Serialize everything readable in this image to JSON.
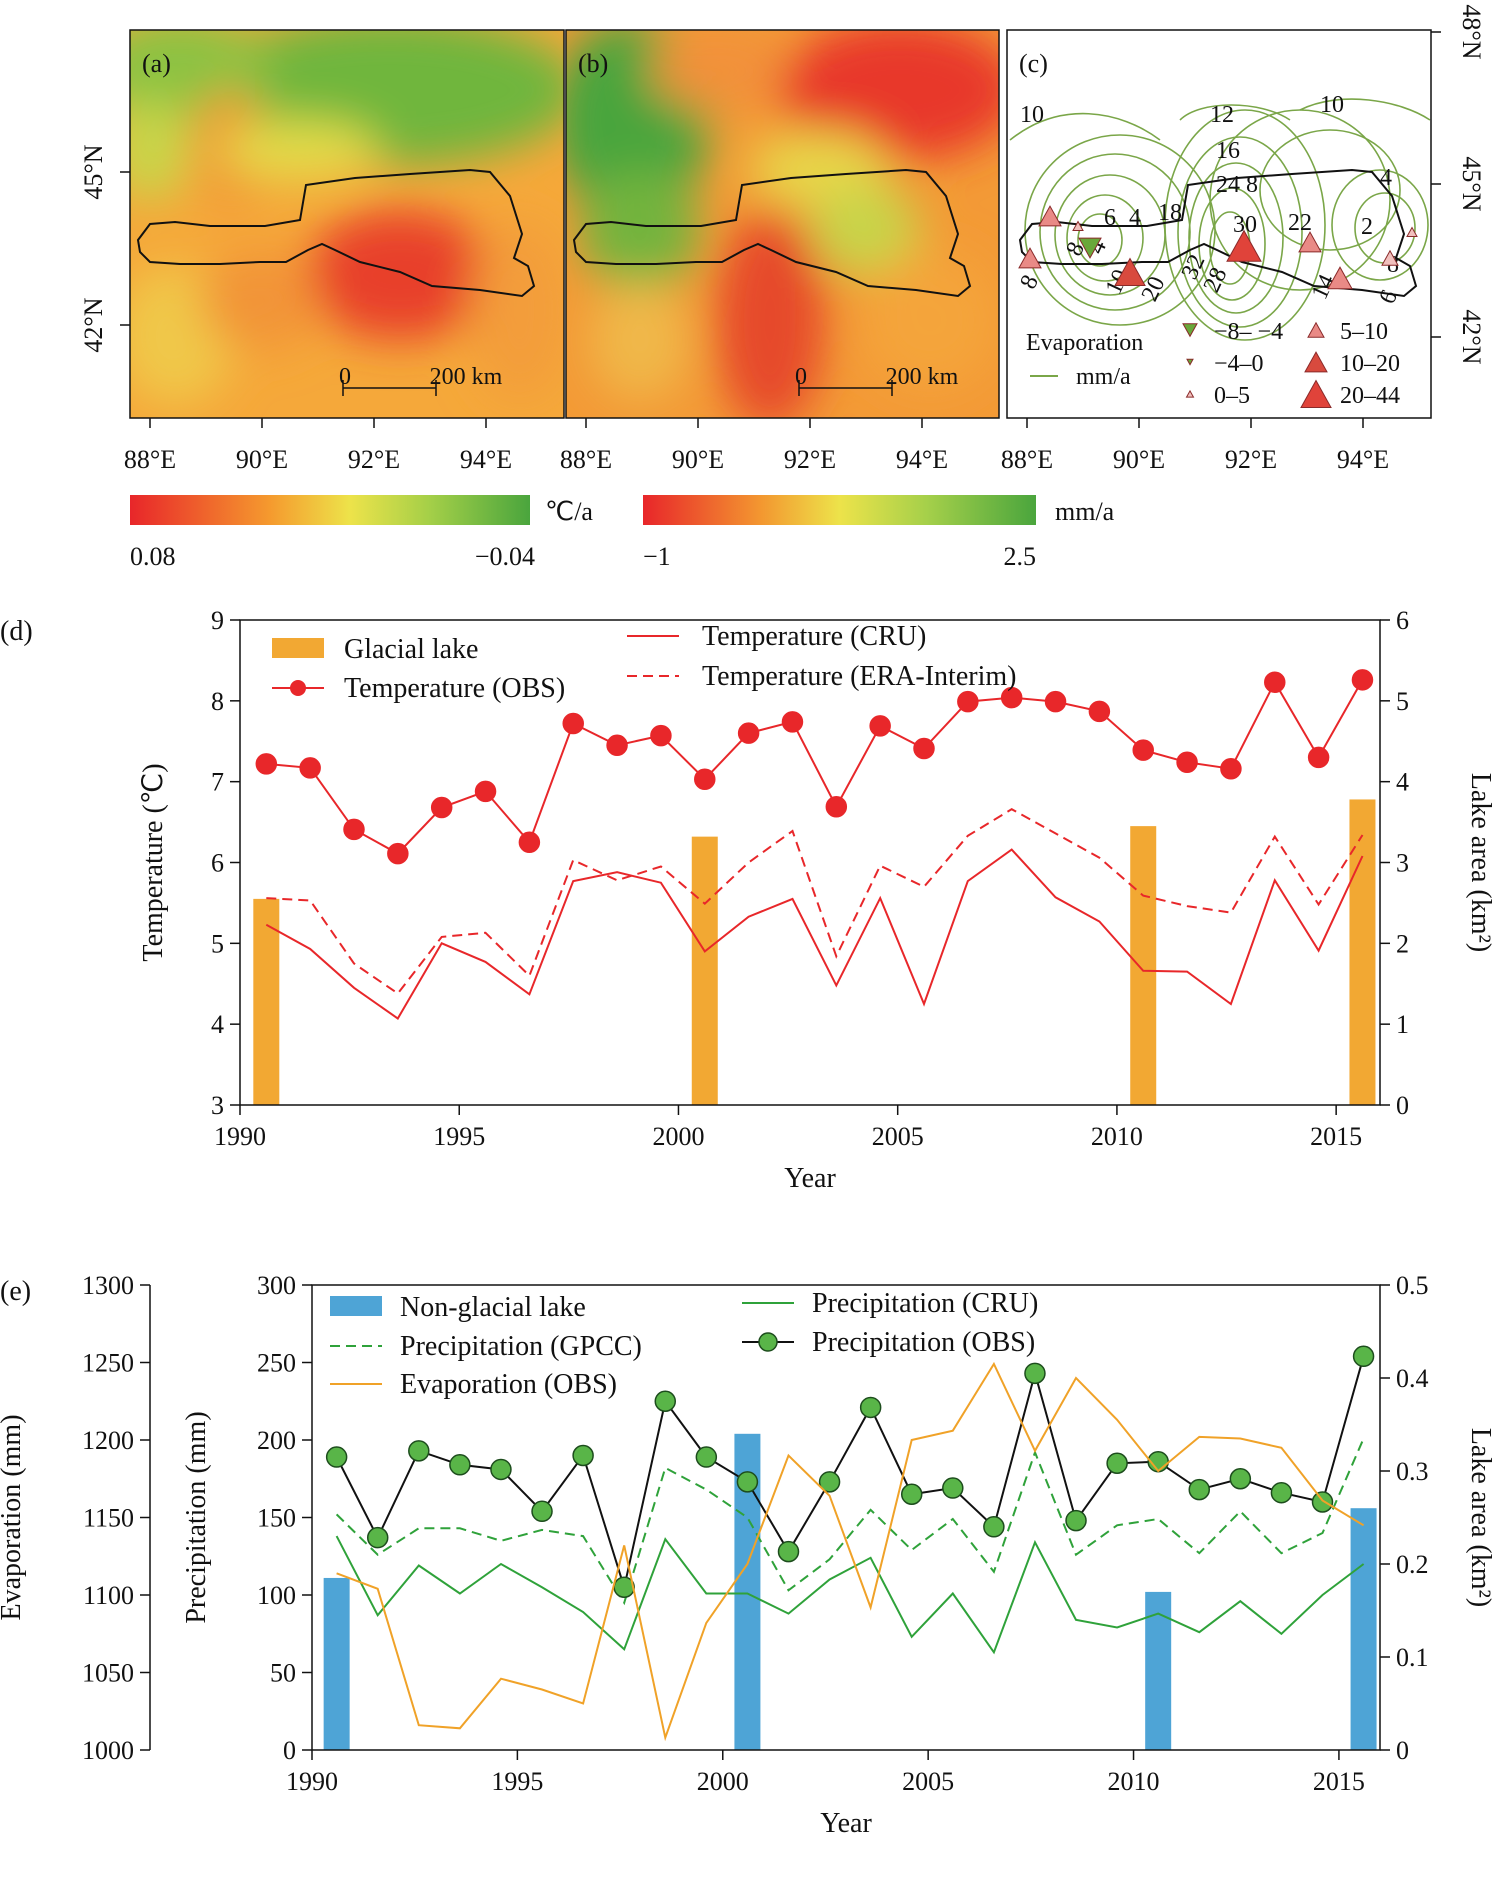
{
  "colors": {
    "red": "#e8272a",
    "orange_bar": "#f2a833",
    "blue_bar": "#4ea4d6",
    "green": "#2fa23a",
    "green_dark": "#3e9b2e",
    "orange_line": "#f0a228",
    "contour": "#7aa648"
  },
  "maps": {
    "a": {
      "label": "(a)",
      "scale_0": "0",
      "scale_200": "200 km"
    },
    "b": {
      "label": "(b)",
      "scale_0": "0",
      "scale_200": "200 km"
    },
    "c": {
      "label": "(c)",
      "contour_labels": [
        "10",
        "12",
        "16",
        "24",
        "10",
        "4",
        "8",
        "18",
        "6",
        "4",
        "30",
        "22",
        "2",
        "8",
        "10",
        "20",
        "32",
        "28",
        "14",
        "6",
        "8",
        "8",
        "4"
      ],
      "legend_title": "Evaporation",
      "legend_line_label": "mm/a",
      "legend_items": [
        "−8– −4",
        "−4–0",
        "0–5",
        "5–10",
        "10–20",
        "20–44"
      ]
    },
    "x_ticks": [
      "88°E",
      "90°E",
      "92°E",
      "94°E"
    ],
    "y_ticks_left": [
      "45°N",
      "42°N"
    ],
    "y_ticks_right": [
      "48°N",
      "45°N",
      "42°N"
    ],
    "colorbar_temp": {
      "unit": "℃/a",
      "min_label": "0.08",
      "max_label": "−0.04"
    },
    "colorbar_precip": {
      "unit": "mm/a",
      "min_label": "−1",
      "max_label": "2.5"
    }
  },
  "chart_data": [
    {
      "panel": "(d)",
      "type": "line",
      "xlabel": "Year",
      "ylabel": "Temperature (℃)",
      "y2label": "Lake area (km²)",
      "xlim": [
        1990,
        2016
      ],
      "ylim": [
        3,
        9
      ],
      "y2lim": [
        0,
        6
      ],
      "x_ticks": [
        1990,
        1995,
        2000,
        2005,
        2010,
        2015
      ],
      "y_ticks": [
        3,
        4,
        5,
        6,
        7,
        8,
        9
      ],
      "y2_ticks": [
        0,
        1,
        2,
        3,
        4,
        5,
        6
      ],
      "bars": {
        "name": "Glacial lake",
        "x": [
          1990.6,
          2000.6,
          2010.6,
          2015.6
        ],
        "values": [
          2.55,
          3.32,
          3.45,
          3.78
        ]
      },
      "series": [
        {
          "name": "Temperature (OBS)",
          "style": "line-marker",
          "x": [
            1990.6,
            1991.6,
            1992.6,
            1993.6,
            1994.6,
            1995.6,
            1996.6,
            1997.6,
            1998.6,
            1999.6,
            2000.6,
            2001.6,
            2002.6,
            2003.6,
            2004.6,
            2005.6,
            2006.6,
            2007.6,
            2008.6,
            2009.6,
            2010.6,
            2011.6,
            2012.6,
            2013.6,
            2014.6,
            2015.6
          ],
          "values": [
            7.22,
            7.17,
            6.41,
            6.11,
            6.68,
            6.88,
            6.25,
            7.72,
            7.45,
            7.57,
            7.03,
            7.6,
            7.74,
            6.69,
            7.69,
            7.41,
            7.99,
            8.04,
            7.99,
            7.87,
            7.39,
            7.24,
            7.16,
            8.23,
            7.3,
            8.26
          ]
        },
        {
          "name": "Temperature (CRU)",
          "style": "solid",
          "x": [
            1990.6,
            1991.6,
            1992.6,
            1993.6,
            1994.6,
            1995.6,
            1996.6,
            1997.6,
            1998.6,
            1999.6,
            2000.6,
            2001.6,
            2002.6,
            2003.6,
            2004.6,
            2005.6,
            2006.6,
            2007.6,
            2008.6,
            2009.6,
            2010.6,
            2011.6,
            2012.6,
            2013.6,
            2014.6,
            2015.6
          ],
          "values": [
            5.23,
            4.93,
            4.45,
            4.07,
            5.0,
            4.77,
            4.37,
            5.77,
            5.88,
            5.75,
            4.9,
            5.33,
            5.55,
            4.48,
            5.56,
            4.25,
            5.77,
            6.16,
            5.57,
            5.27,
            4.66,
            4.65,
            4.25,
            5.78,
            4.91,
            6.08
          ]
        },
        {
          "name": "Temperature (ERA-Interim)",
          "style": "dashed",
          "x": [
            1990.6,
            1991.6,
            1992.6,
            1993.6,
            1994.6,
            1995.6,
            1996.6,
            1997.6,
            1998.6,
            1999.6,
            2000.6,
            2001.6,
            2002.6,
            2003.6,
            2004.6,
            2005.6,
            2006.6,
            2007.6,
            2008.6,
            2009.6,
            2010.6,
            2011.6,
            2012.6,
            2013.6,
            2014.6,
            2015.6
          ],
          "values": [
            5.56,
            5.53,
            4.75,
            4.38,
            5.08,
            5.13,
            4.6,
            6.03,
            5.78,
            5.95,
            5.49,
            6.0,
            6.39,
            4.84,
            5.96,
            5.7,
            6.33,
            6.66,
            6.36,
            6.06,
            5.59,
            5.46,
            5.38,
            6.32,
            5.48,
            6.34
          ]
        }
      ]
    },
    {
      "panel": "(e)",
      "type": "line",
      "xlabel": "Year",
      "ylabel": "Precipitation (mm)",
      "y2label": "Lake area (km²)",
      "y3label": "Evaporation (mm)",
      "xlim": [
        1990,
        2016
      ],
      "ylim": [
        0,
        300
      ],
      "y2lim": [
        0,
        0.5
      ],
      "y3lim": [
        1000,
        1300
      ],
      "x_ticks": [
        1990,
        1995,
        2000,
        2005,
        2010,
        2015
      ],
      "y_ticks": [
        0,
        50,
        100,
        150,
        200,
        250,
        300
      ],
      "y2_ticks": [
        0,
        0.1,
        0.2,
        0.3,
        0.4,
        0.5
      ],
      "y3_ticks": [
        1000,
        1050,
        1100,
        1150,
        1200,
        1250,
        1300
      ],
      "bars": {
        "name": "Non-glacial lake",
        "x": [
          1990.6,
          2000.6,
          2010.6,
          2015.6
        ],
        "values": [
          0.185,
          0.34,
          0.17,
          0.26
        ]
      },
      "series": [
        {
          "name": "Precipitation (CRU)",
          "style": "solid",
          "axis": "left",
          "x": [
            1990.6,
            1991.6,
            1992.6,
            1993.6,
            1994.6,
            1995.6,
            1996.6,
            1997.6,
            1998.6,
            1999.6,
            2000.6,
            2001.6,
            2002.6,
            2003.6,
            2004.6,
            2005.6,
            2006.6,
            2007.6,
            2008.6,
            2009.6,
            2010.6,
            2011.6,
            2012.6,
            2013.6,
            2014.6,
            2015.6
          ],
          "values": [
            138,
            87,
            119,
            101,
            120,
            105,
            89,
            65,
            136,
            101,
            101,
            88,
            110,
            124,
            73,
            101,
            63,
            134,
            84,
            79,
            88,
            76,
            96,
            75,
            100,
            120
          ]
        },
        {
          "name": "Precipitation (GPCC)",
          "style": "dashed",
          "axis": "left",
          "x": [
            1990.6,
            1991.6,
            1992.6,
            1993.6,
            1994.6,
            1995.6,
            1996.6,
            1997.6,
            1998.6,
            1999.6,
            2000.6,
            2001.6,
            2002.6,
            2003.6,
            2004.6,
            2005.6,
            2006.6,
            2007.6,
            2008.6,
            2009.6,
            2010.6,
            2011.6,
            2012.6,
            2013.6,
            2014.6,
            2015.6
          ],
          "values": [
            152,
            126,
            143,
            143,
            135,
            142,
            138,
            95,
            182,
            168,
            150,
            103,
            123,
            155,
            129,
            149,
            115,
            192,
            126,
            145,
            149,
            127,
            154,
            127,
            140,
            201
          ]
        },
        {
          "name": "Precipitation (OBS)",
          "style": "line-marker",
          "axis": "left",
          "x": [
            1990.6,
            1991.6,
            1992.6,
            1993.6,
            1994.6,
            1995.6,
            1996.6,
            1997.6,
            1998.6,
            1999.6,
            2000.6,
            2001.6,
            2002.6,
            2003.6,
            2004.6,
            2005.6,
            2006.6,
            2007.6,
            2008.6,
            2009.6,
            2010.6,
            2011.6,
            2012.6,
            2013.6,
            2014.6,
            2015.6
          ],
          "values": [
            189,
            137,
            193,
            184,
            181,
            154,
            190,
            105,
            225,
            189,
            173,
            128,
            173,
            221,
            165,
            169,
            144,
            243,
            148,
            185,
            186,
            168,
            175,
            166,
            160,
            254
          ]
        },
        {
          "name": "Evaporation (OBS)",
          "style": "solid",
          "axis": "evaporation",
          "x": [
            1990.6,
            1991.6,
            1992.6,
            1993.6,
            1994.6,
            1995.6,
            1996.6,
            1997.6,
            1998.6,
            1999.6,
            2000.6,
            2001.6,
            2002.6,
            2003.6,
            2004.6,
            2005.6,
            2006.6,
            2007.6,
            2008.6,
            2009.6,
            2010.6,
            2011.6,
            2012.6,
            2013.6,
            2014.6,
            2015.6
          ],
          "values": [
            1114,
            1104,
            1016,
            1014,
            1046,
            1039,
            1030,
            1132,
            1008,
            1082,
            1120,
            1190,
            1164,
            1092,
            1200,
            1206,
            1249,
            1193,
            1240,
            1213,
            1180,
            1202,
            1201,
            1195,
            1161,
            1145
          ]
        }
      ]
    }
  ]
}
